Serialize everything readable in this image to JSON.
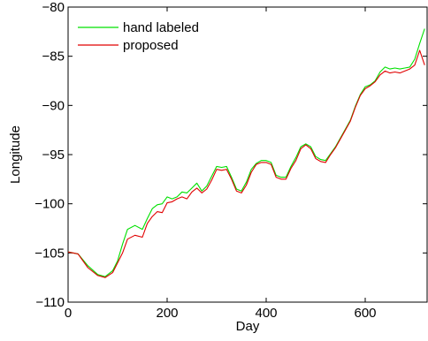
{
  "chart_data": {
    "type": "line",
    "title": "",
    "xlabel": "Day",
    "ylabel": "Longitude",
    "xlim": [
      0,
      725
    ],
    "ylim": [
      -110,
      -80
    ],
    "xticks": [
      0,
      200,
      400,
      600
    ],
    "yticks": [
      -110,
      -105,
      -100,
      -95,
      -90,
      -85,
      -80
    ],
    "xtick_labels": [
      "0",
      "200",
      "400",
      "600"
    ],
    "ytick_labels": [
      "−110",
      "−105",
      "−100",
      "−95",
      "−90",
      "−85",
      "−80"
    ],
    "grid": false,
    "legend_position": "top-left",
    "series": [
      {
        "name": "hand labeled",
        "color": "#00e000",
        "x": [
          0,
          20,
          40,
          60,
          75,
          90,
          100,
          110,
          120,
          135,
          150,
          160,
          170,
          180,
          190,
          200,
          210,
          220,
          230,
          240,
          250,
          260,
          270,
          280,
          290,
          300,
          310,
          320,
          330,
          340,
          350,
          360,
          370,
          380,
          390,
          400,
          410,
          420,
          430,
          440,
          450,
          460,
          470,
          480,
          490,
          500,
          510,
          520,
          530,
          540,
          550,
          560,
          570,
          580,
          590,
          600,
          610,
          620,
          630,
          640,
          650,
          660,
          670,
          680,
          690,
          700,
          710,
          720
        ],
        "y": [
          -104.9,
          -105.1,
          -106.3,
          -107.2,
          -107.4,
          -106.8,
          -105.8,
          -104.1,
          -102.6,
          -102.2,
          -102.6,
          -101.5,
          -100.5,
          -100.1,
          -100.0,
          -99.3,
          -99.5,
          -99.3,
          -98.8,
          -98.9,
          -98.4,
          -97.9,
          -98.7,
          -98.2,
          -97.2,
          -96.2,
          -96.3,
          -96.2,
          -97.3,
          -98.5,
          -98.7,
          -97.8,
          -96.5,
          -95.9,
          -95.6,
          -95.6,
          -95.8,
          -97.1,
          -97.3,
          -97.3,
          -96.2,
          -95.3,
          -94.2,
          -93.9,
          -94.2,
          -95.2,
          -95.5,
          -95.6,
          -94.9,
          -94.2,
          -93.3,
          -92.4,
          -91.5,
          -90.1,
          -88.9,
          -88.1,
          -87.9,
          -87.5,
          -86.6,
          -86.1,
          -86.3,
          -86.2,
          -86.3,
          -86.2,
          -86.1,
          -85.3,
          -83.7,
          -82.2
        ]
      },
      {
        "name": "proposed",
        "color": "#e00000",
        "x": [
          0,
          20,
          40,
          60,
          75,
          90,
          100,
          110,
          120,
          135,
          150,
          160,
          170,
          180,
          190,
          200,
          210,
          220,
          230,
          240,
          250,
          260,
          270,
          280,
          290,
          300,
          310,
          320,
          330,
          340,
          350,
          360,
          370,
          380,
          390,
          400,
          410,
          420,
          430,
          440,
          450,
          460,
          470,
          480,
          490,
          500,
          510,
          520,
          530,
          540,
          550,
          560,
          570,
          580,
          590,
          600,
          610,
          620,
          630,
          640,
          650,
          660,
          670,
          680,
          690,
          700,
          710,
          720
        ],
        "y": [
          -104.9,
          -105.1,
          -106.5,
          -107.3,
          -107.5,
          -107.0,
          -106.0,
          -105.0,
          -103.6,
          -103.2,
          -103.4,
          -102.0,
          -101.3,
          -100.8,
          -100.9,
          -99.9,
          -99.8,
          -99.5,
          -99.3,
          -99.5,
          -98.8,
          -98.4,
          -98.9,
          -98.5,
          -97.6,
          -96.5,
          -96.6,
          -96.5,
          -97.5,
          -98.7,
          -98.9,
          -98.1,
          -96.8,
          -96.0,
          -95.8,
          -95.8,
          -96.0,
          -97.3,
          -97.5,
          -97.5,
          -96.4,
          -95.6,
          -94.4,
          -94.0,
          -94.4,
          -95.4,
          -95.7,
          -95.8,
          -95.0,
          -94.3,
          -93.4,
          -92.5,
          -91.6,
          -90.2,
          -89.0,
          -88.3,
          -88.0,
          -87.6,
          -86.9,
          -86.5,
          -86.7,
          -86.6,
          -86.7,
          -86.5,
          -86.3,
          -85.9,
          -84.4,
          -85.9
        ]
      }
    ]
  }
}
